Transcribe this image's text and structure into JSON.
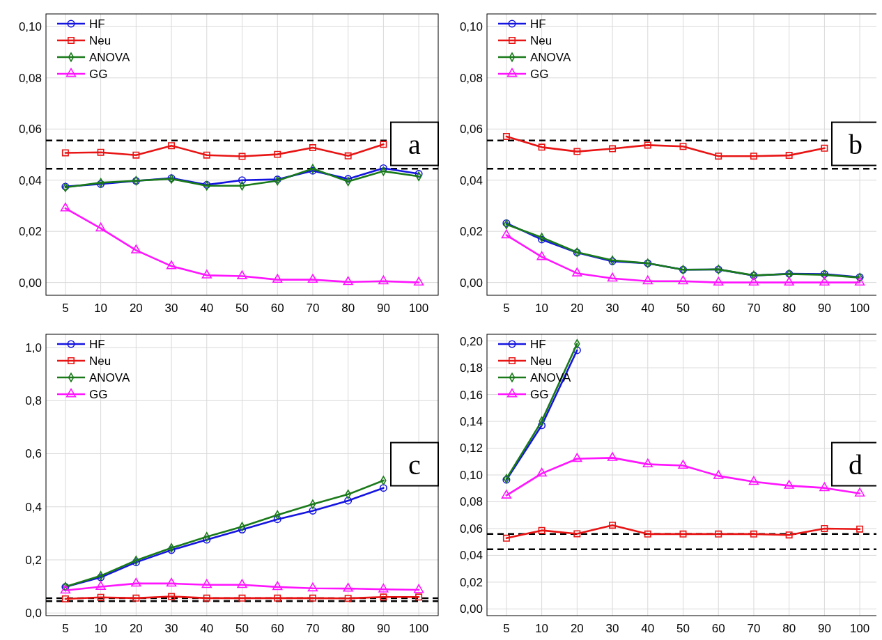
{
  "chart_data": [
    {
      "type": "line",
      "categories": [
        "5",
        "10",
        "20",
        "30",
        "40",
        "50",
        "60",
        "70",
        "80",
        "90",
        "100"
      ],
      "ylim": [
        -0.005,
        0.105
      ],
      "yticks": [
        {
          "value": 0,
          "label": "0,00"
        },
        {
          "value": 0.02,
          "label": "0,02"
        },
        {
          "value": 0.04,
          "label": "0,04"
        },
        {
          "value": 0.06,
          "label": "0,06"
        },
        {
          "value": 0.08,
          "label": "0,08"
        },
        {
          "value": 0.1,
          "label": "0,10"
        }
      ],
      "grid": true,
      "legend": "top left",
      "annotations": [
        "a"
      ],
      "ref_lines": [
        {
          "axis": "y",
          "value": 0.0555,
          "color": "#000000",
          "line_style": "dashed"
        },
        {
          "axis": "y",
          "value": 0.0445,
          "color": "#000000",
          "line_style": "dashed"
        }
      ],
      "series": [
        {
          "name": "HF",
          "color": "#1414e0",
          "marker": "circle",
          "values": [
            0.0375,
            0.0385,
            0.0397,
            0.0408,
            0.0382,
            0.04,
            0.0403,
            0.0437,
            0.0405,
            0.0447,
            0.0425
          ]
        },
        {
          "name": "Neu",
          "color": "#e81414",
          "marker": "square",
          "values": [
            0.0507,
            0.0509,
            0.0498,
            0.0535,
            0.0498,
            0.0493,
            0.0501,
            0.0527,
            0.0495,
            0.054,
            null
          ]
        },
        {
          "name": "ANOVA",
          "color": "#1a7a1a",
          "marker": "diamond",
          "values": [
            0.0372,
            0.039,
            0.0398,
            0.0405,
            0.0378,
            0.0378,
            0.0398,
            0.0445,
            0.0395,
            0.0435,
            0.0415
          ]
        },
        {
          "name": "GG",
          "color": "#ff14ff",
          "marker": "triangle",
          "values": [
            0.029,
            0.0212,
            0.0126,
            0.0064,
            0.0028,
            0.0025,
            0.0011,
            0.0011,
            0.0002,
            0.0005,
            0.0
          ]
        }
      ]
    },
    {
      "type": "line",
      "categories": [
        "5",
        "10",
        "20",
        "30",
        "40",
        "50",
        "60",
        "70",
        "80",
        "90",
        "100"
      ],
      "ylim": [
        -0.005,
        0.105
      ],
      "yticks": [
        {
          "value": 0,
          "label": "0,00"
        },
        {
          "value": 0.02,
          "label": "0,02"
        },
        {
          "value": 0.04,
          "label": "0,04"
        },
        {
          "value": 0.06,
          "label": "0,06"
        },
        {
          "value": 0.08,
          "label": "0,08"
        },
        {
          "value": 0.1,
          "label": "0,10"
        }
      ],
      "grid": true,
      "legend": "top left",
      "annotations": [
        "b"
      ],
      "ref_lines": [
        {
          "axis": "y",
          "value": 0.0555,
          "color": "#000000",
          "line_style": "dashed"
        },
        {
          "axis": "y",
          "value": 0.0445,
          "color": "#000000",
          "line_style": "dashed"
        }
      ],
      "series": [
        {
          "name": "HF",
          "color": "#1414e0",
          "marker": "circle",
          "values": [
            0.0232,
            0.0168,
            0.0117,
            0.0083,
            0.0075,
            0.005,
            0.0051,
            0.0027,
            0.0034,
            0.0033,
            0.0021
          ]
        },
        {
          "name": "Neu",
          "color": "#e81414",
          "marker": "square",
          "values": [
            0.0571,
            0.0529,
            0.0512,
            0.0523,
            0.0537,
            0.0532,
            0.0494,
            0.0494,
            0.0497,
            0.0525,
            null
          ]
        },
        {
          "name": "ANOVA",
          "color": "#1a7a1a",
          "marker": "diamond",
          "values": [
            0.0227,
            0.0176,
            0.0118,
            0.0087,
            0.0075,
            0.005,
            0.0051,
            0.0028,
            0.0033,
            0.003,
            0.0019
          ]
        },
        {
          "name": "GG",
          "color": "#ff14ff",
          "marker": "triangle",
          "values": [
            0.0185,
            0.01,
            0.0036,
            0.0016,
            0.0005,
            0.0005,
            0.0,
            0.0,
            0.0,
            0.0,
            0.0
          ]
        }
      ]
    },
    {
      "type": "line",
      "categories": [
        "5",
        "10",
        "20",
        "30",
        "40",
        "50",
        "60",
        "70",
        "80",
        "90",
        "100"
      ],
      "ylim": [
        -0.01,
        1.05
      ],
      "yticks": [
        {
          "value": 0,
          "label": "0,0"
        },
        {
          "value": 0.2,
          "label": "0,2"
        },
        {
          "value": 0.4,
          "label": "0,4"
        },
        {
          "value": 0.6,
          "label": "0,6"
        },
        {
          "value": 0.8,
          "label": "0,8"
        },
        {
          "value": 1.0,
          "label": "1,0"
        }
      ],
      "grid": true,
      "legend": "top left",
      "annotations": [
        "c"
      ],
      "ref_lines": [
        {
          "axis": "y",
          "value": 0.0555,
          "color": "#000000",
          "line_style": "dashed"
        },
        {
          "axis": "y",
          "value": 0.0445,
          "color": "#000000",
          "line_style": "dashed"
        }
      ],
      "series": [
        {
          "name": "HF",
          "color": "#1414e0",
          "marker": "circle",
          "values": [
            0.098,
            0.134,
            0.191,
            0.237,
            0.276,
            0.314,
            0.353,
            0.385,
            0.423,
            0.471,
            null
          ]
        },
        {
          "name": "Neu",
          "color": "#e81414",
          "marker": "square",
          "values": [
            0.053,
            0.059,
            0.056,
            0.062,
            0.056,
            0.056,
            0.056,
            0.056,
            0.055,
            0.06,
            0.06
          ]
        },
        {
          "name": "ANOVA",
          "color": "#1a7a1a",
          "marker": "diamond",
          "values": [
            0.099,
            0.14,
            0.198,
            0.245,
            0.287,
            0.325,
            0.369,
            0.41,
            0.447,
            0.499,
            null
          ]
        },
        {
          "name": "GG",
          "color": "#ff14ff",
          "marker": "triangle",
          "values": [
            0.085,
            0.099,
            0.111,
            0.111,
            0.106,
            0.106,
            0.098,
            0.093,
            0.092,
            0.089,
            0.087
          ]
        }
      ]
    },
    {
      "type": "line",
      "categories": [
        "5",
        "10",
        "20",
        "30",
        "40",
        "50",
        "60",
        "70",
        "80",
        "90",
        "100"
      ],
      "ylim": [
        -0.005,
        0.205
      ],
      "yticks": [
        {
          "value": 0,
          "label": "0,00"
        },
        {
          "value": 0.02,
          "label": "0,02"
        },
        {
          "value": 0.04,
          "label": "0,04"
        },
        {
          "value": 0.06,
          "label": "0,06"
        },
        {
          "value": 0.08,
          "label": "0,08"
        },
        {
          "value": 0.1,
          "label": "0,10"
        },
        {
          "value": 0.12,
          "label": "0,12"
        },
        {
          "value": 0.14,
          "label": "0,14"
        },
        {
          "value": 0.16,
          "label": "0,16"
        },
        {
          "value": 0.18,
          "label": "0,18"
        },
        {
          "value": 0.2,
          "label": "0,20"
        }
      ],
      "grid": true,
      "legend": "top left",
      "annotations": [
        "d"
      ],
      "ref_lines": [
        {
          "axis": "y",
          "value": 0.056,
          "color": "#000000",
          "line_style": "dashed"
        },
        {
          "axis": "y",
          "value": 0.0445,
          "color": "#000000",
          "line_style": "dashed"
        }
      ],
      "series": [
        {
          "name": "HF",
          "color": "#1414e0",
          "marker": "circle",
          "values": [
            0.0964,
            0.137,
            0.1931,
            null,
            null,
            null,
            null,
            null,
            null,
            null,
            null
          ]
        },
        {
          "name": "Neu",
          "color": "#e81414",
          "marker": "square",
          "values": [
            0.0528,
            0.0586,
            0.0561,
            0.0625,
            0.0559,
            0.0559,
            0.0559,
            0.0559,
            0.0552,
            0.06,
            0.0596
          ]
        },
        {
          "name": "ANOVA",
          "color": "#1a7a1a",
          "marker": "diamond",
          "values": [
            0.0972,
            0.1402,
            0.1979,
            null,
            null,
            null,
            null,
            null,
            null,
            null,
            null
          ]
        },
        {
          "name": "GG",
          "color": "#ff14ff",
          "marker": "triangle",
          "values": [
            0.0847,
            0.1011,
            0.1121,
            0.1128,
            0.108,
            0.107,
            0.0993,
            0.0949,
            0.092,
            0.0903,
            0.0862
          ]
        }
      ]
    }
  ]
}
